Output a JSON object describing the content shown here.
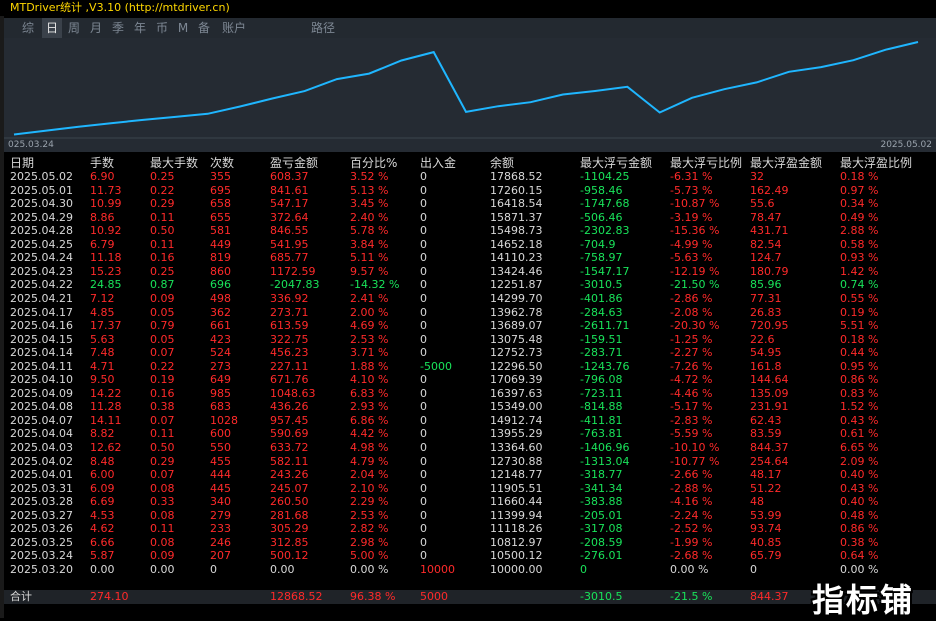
{
  "title": "MTDriver统计 ,V3.10 (http://mtdriver.cn)",
  "tabs": [
    {
      "label": "综",
      "active": false
    },
    {
      "label": "日",
      "active": true
    },
    {
      "label": "周",
      "active": false
    },
    {
      "label": "月",
      "active": false
    },
    {
      "label": "季",
      "active": false
    },
    {
      "label": "年",
      "active": false
    },
    {
      "label": "币",
      "active": false
    },
    {
      "label": "M",
      "active": false
    },
    {
      "label": "备",
      "active": false
    },
    {
      "label": "账户",
      "active": false
    },
    {
      "label": "路径",
      "active": false
    }
  ],
  "chart_data": {
    "type": "line",
    "x_start_label": "025.03.24",
    "x_end_label": "2025.05.02",
    "line_color": "#1fb6ff",
    "x": [
      "2025.03.24",
      "2025.03.25",
      "2025.03.26",
      "2025.03.27",
      "2025.03.28",
      "2025.03.31",
      "2025.04.01",
      "2025.04.02",
      "2025.04.03",
      "2025.04.04",
      "2025.04.07",
      "2025.04.08",
      "2025.04.09",
      "2025.04.10",
      "2025.04.11",
      "2025.04.14",
      "2025.04.15",
      "2025.04.16",
      "2025.04.17",
      "2025.04.21",
      "2025.04.22",
      "2025.04.23",
      "2025.04.24",
      "2025.04.25",
      "2025.04.28",
      "2025.04.29",
      "2025.04.30",
      "2025.05.01",
      "2025.05.02"
    ],
    "values": [
      10500.12,
      10812.97,
      11118.26,
      11399.94,
      11660.44,
      11905.51,
      12148.77,
      12730.88,
      13364.6,
      13955.29,
      14912.74,
      15349.0,
      16397.63,
      17069.39,
      12296.5,
      12752.73,
      13075.48,
      13689.07,
      13962.78,
      14299.7,
      12251.87,
      13424.46,
      14110.23,
      14652.18,
      15498.73,
      15871.37,
      16418.54,
      17260.15,
      17868.52
    ]
  },
  "columns": [
    "日期",
    "手数",
    "最大手数",
    "次数",
    "盈亏金额",
    "百分比%",
    "出入金",
    "余额",
    "最大浮亏金额",
    "最大浮亏比例",
    "最大浮盈金额",
    "最大浮盈比例"
  ],
  "rows": [
    [
      "2025.05.02",
      "6.90",
      "0.25",
      "355",
      "608.37",
      "3.52 %",
      "0",
      "17868.52",
      "-1104.25",
      "-6.31 %",
      "32",
      "0.18 %"
    ],
    [
      "2025.05.01",
      "11.73",
      "0.22",
      "695",
      "841.61",
      "5.13 %",
      "0",
      "17260.15",
      "-958.46",
      "-5.73 %",
      "162.49",
      "0.97 %"
    ],
    [
      "2025.04.30",
      "10.99",
      "0.29",
      "658",
      "547.17",
      "3.45 %",
      "0",
      "16418.54",
      "-1747.68",
      "-10.87 %",
      "55.6",
      "0.34 %"
    ],
    [
      "2025.04.29",
      "8.86",
      "0.11",
      "655",
      "372.64",
      "2.40 %",
      "0",
      "15871.37",
      "-506.46",
      "-3.19 %",
      "78.47",
      "0.49 %"
    ],
    [
      "2025.04.28",
      "10.92",
      "0.50",
      "581",
      "846.55",
      "5.78 %",
      "0",
      "15498.73",
      "-2302.83",
      "-15.36 %",
      "431.71",
      "2.88 %"
    ],
    [
      "2025.04.25",
      "6.79",
      "0.11",
      "449",
      "541.95",
      "3.84 %",
      "0",
      "14652.18",
      "-704.9",
      "-4.99 %",
      "82.54",
      "0.58 %"
    ],
    [
      "2025.04.24",
      "11.18",
      "0.16",
      "819",
      "685.77",
      "5.11 %",
      "0",
      "14110.23",
      "-758.97",
      "-5.63 %",
      "124.7",
      "0.93 %"
    ],
    [
      "2025.04.23",
      "15.23",
      "0.25",
      "860",
      "1172.59",
      "9.57 %",
      "0",
      "13424.46",
      "-1547.17",
      "-12.19 %",
      "180.79",
      "1.42 %"
    ],
    [
      "2025.04.22",
      "24.85",
      "0.87",
      "696",
      "-2047.83",
      "-14.32 %",
      "0",
      "12251.87",
      "-3010.5",
      "-21.50 %",
      "85.96",
      "0.74 %"
    ],
    [
      "2025.04.21",
      "7.12",
      "0.09",
      "498",
      "336.92",
      "2.41 %",
      "0",
      "14299.70",
      "-401.86",
      "-2.86 %",
      "77.31",
      "0.55 %"
    ],
    [
      "2025.04.17",
      "4.85",
      "0.05",
      "362",
      "273.71",
      "2.00 %",
      "0",
      "13962.78",
      "-284.63",
      "-2.08 %",
      "26.83",
      "0.19 %"
    ],
    [
      "2025.04.16",
      "17.37",
      "0.79",
      "661",
      "613.59",
      "4.69 %",
      "0",
      "13689.07",
      "-2611.71",
      "-20.30 %",
      "720.95",
      "5.51 %"
    ],
    [
      "2025.04.15",
      "5.63",
      "0.05",
      "423",
      "322.75",
      "2.53 %",
      "0",
      "13075.48",
      "-159.51",
      "-1.25 %",
      "22.6",
      "0.18 %"
    ],
    [
      "2025.04.14",
      "7.48",
      "0.07",
      "524",
      "456.23",
      "3.71 %",
      "0",
      "12752.73",
      "-283.71",
      "-2.27 %",
      "54.95",
      "0.44 %"
    ],
    [
      "2025.04.11",
      "4.71",
      "0.22",
      "273",
      "227.11",
      "1.88 %",
      "-5000",
      "12296.50",
      "-1243.76",
      "-7.26 %",
      "161.8",
      "0.95 %"
    ],
    [
      "2025.04.10",
      "9.50",
      "0.19",
      "649",
      "671.76",
      "4.10 %",
      "0",
      "17069.39",
      "-796.08",
      "-4.72 %",
      "144.64",
      "0.86 %"
    ],
    [
      "2025.04.09",
      "14.22",
      "0.16",
      "985",
      "1048.63",
      "6.83 %",
      "0",
      "16397.63",
      "-723.11",
      "-4.46 %",
      "135.09",
      "0.83 %"
    ],
    [
      "2025.04.08",
      "11.28",
      "0.38",
      "683",
      "436.26",
      "2.93 %",
      "0",
      "15349.00",
      "-814.88",
      "-5.17 %",
      "231.91",
      "1.52 %"
    ],
    [
      "2025.04.07",
      "14.11",
      "0.07",
      "1028",
      "957.45",
      "6.86 %",
      "0",
      "14912.74",
      "-411.81",
      "-2.83 %",
      "62.43",
      "0.43 %"
    ],
    [
      "2025.04.04",
      "8.82",
      "0.11",
      "600",
      "590.69",
      "4.42 %",
      "0",
      "13955.29",
      "-763.81",
      "-5.59 %",
      "83.59",
      "0.61 %"
    ],
    [
      "2025.04.03",
      "12.62",
      "0.50",
      "550",
      "633.72",
      "4.98 %",
      "0",
      "13364.60",
      "-1406.96",
      "-10.10 %",
      "844.37",
      "6.65 %"
    ],
    [
      "2025.04.02",
      "8.48",
      "0.29",
      "455",
      "582.11",
      "4.79 %",
      "0",
      "12730.88",
      "-1313.04",
      "-10.77 %",
      "254.64",
      "2.09 %"
    ],
    [
      "2025.04.01",
      "6.00",
      "0.07",
      "444",
      "243.26",
      "2.04 %",
      "0",
      "12148.77",
      "-318.77",
      "-2.66 %",
      "48.17",
      "0.40 %"
    ],
    [
      "2025.03.31",
      "6.09",
      "0.08",
      "445",
      "245.07",
      "2.10 %",
      "0",
      "11905.51",
      "-341.34",
      "-2.88 %",
      "51.22",
      "0.43 %"
    ],
    [
      "2025.03.28",
      "6.69",
      "0.33",
      "340",
      "260.50",
      "2.29 %",
      "0",
      "11660.44",
      "-383.88",
      "-4.16 %",
      "48",
      "0.40 %"
    ],
    [
      "2025.03.27",
      "4.53",
      "0.08",
      "279",
      "281.68",
      "2.53 %",
      "0",
      "11399.94",
      "-205.01",
      "-2.24 %",
      "53.99",
      "0.48 %"
    ],
    [
      "2025.03.26",
      "4.62",
      "0.11",
      "233",
      "305.29",
      "2.82 %",
      "0",
      "11118.26",
      "-317.08",
      "-2.52 %",
      "93.74",
      "0.86 %"
    ],
    [
      "2025.03.25",
      "6.66",
      "0.08",
      "246",
      "312.85",
      "2.98 %",
      "0",
      "10812.97",
      "-208.59",
      "-1.99 %",
      "40.85",
      "0.38 %"
    ],
    [
      "2025.03.24",
      "5.87",
      "0.09",
      "207",
      "500.12",
      "5.00 %",
      "0",
      "10500.12",
      "-276.01",
      "-2.68 %",
      "65.79",
      "0.64 %"
    ],
    [
      "2025.03.20",
      "0.00",
      "0.00",
      "0",
      "0.00",
      "0.00 %",
      "10000",
      "10000.00",
      "0",
      "0.00 %",
      "0",
      "0.00 %"
    ]
  ],
  "total": [
    "合计",
    "274.10",
    "",
    "",
    "12868.52",
    "96.38 %",
    "5000",
    "",
    "-3010.5",
    "-21.5 %",
    "844.37",
    ""
  ],
  "watermark": "指标铺",
  "colors": {
    "positive": "#ff2a2a",
    "negative": "#19e35a",
    "neutral": "#d8d8d8",
    "accent": "#ffd800"
  }
}
